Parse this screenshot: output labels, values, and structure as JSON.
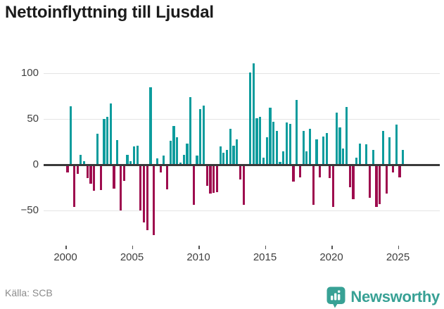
{
  "title": "Nettoinflyttning till Ljusdal",
  "footer": {
    "source": "Källa: SCB",
    "brand": "Newsworthy"
  },
  "icons": {
    "logo_badge": "newsworthy-bar-chart-pin"
  },
  "colors": {
    "positive": "#0d9c9d",
    "negative": "#9e0c4e",
    "zero_line": "#3a3a3a",
    "gridline": "#e4e4e4",
    "axis_text": "#3f3f3f",
    "title_text": "#1b1b1b",
    "source_text": "#8b8b8b",
    "brand_teal": "#38a195"
  },
  "chart_data": {
    "type": "bar",
    "title": "Nettoinflyttning till Ljusdal",
    "period": "quarterly",
    "start": "2000-Q1",
    "end": "2025-Q2",
    "xlabel": "",
    "ylabel": "",
    "ylim": [
      -80,
      115
    ],
    "grid": "horizontal",
    "y_ticks": [
      {
        "label": "100",
        "value": 100
      },
      {
        "label": "50",
        "value": 50
      },
      {
        "label": "0",
        "value": 0
      },
      {
        "label": "−50",
        "value": -50
      }
    ],
    "x_ticks": [
      {
        "label": "2000",
        "year": 2000
      },
      {
        "label": "2005",
        "year": 2005
      },
      {
        "label": "2010",
        "year": 2010
      },
      {
        "label": "2015",
        "year": 2015
      },
      {
        "label": "2020",
        "year": 2020
      },
      {
        "label": "2025",
        "year": 2025
      }
    ],
    "values": [
      -8,
      64,
      -45,
      -9,
      11,
      4,
      -14,
      -20,
      -28,
      34,
      -27,
      50,
      52,
      67,
      -25,
      27,
      -49,
      -17,
      11,
      4,
      20,
      21,
      -49,
      -62,
      -71,
      85,
      -76,
      7,
      -8,
      10,
      -26,
      26,
      42,
      30,
      2,
      11,
      23,
      74,
      -43,
      10,
      61,
      65,
      -22,
      -31,
      -30,
      -29,
      20,
      13,
      16,
      39,
      21,
      28,
      -15,
      -43,
      0,
      101,
      111,
      51,
      52,
      8,
      30,
      62,
      47,
      37,
      3,
      15,
      46,
      45,
      -18,
      71,
      -13,
      37,
      15,
      39,
      -43,
      28,
      -13,
      31,
      35,
      -14,
      -45,
      57,
      41,
      18,
      63,
      -24,
      -37,
      8,
      23,
      0,
      22,
      -35,
      16,
      -45,
      -42,
      37,
      -31,
      30,
      -8,
      44,
      -13,
      16
    ]
  }
}
